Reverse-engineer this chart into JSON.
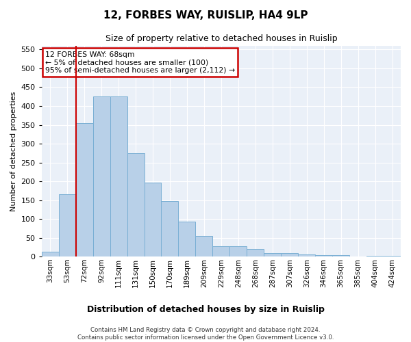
{
  "title": "12, FORBES WAY, RUISLIP, HA4 9LP",
  "subtitle": "Size of property relative to detached houses in Ruislip",
  "xlabel": "Distribution of detached houses by size in Ruislip",
  "ylabel": "Number of detached properties",
  "categories": [
    "33sqm",
    "53sqm",
    "72sqm",
    "92sqm",
    "111sqm",
    "131sqm",
    "150sqm",
    "170sqm",
    "189sqm",
    "209sqm",
    "229sqm",
    "248sqm",
    "268sqm",
    "287sqm",
    "307sqm",
    "326sqm",
    "346sqm",
    "365sqm",
    "385sqm",
    "404sqm",
    "424sqm"
  ],
  "values": [
    13,
    165,
    355,
    425,
    425,
    275,
    197,
    148,
    93,
    55,
    27,
    27,
    20,
    10,
    10,
    6,
    4,
    3,
    1,
    2,
    2
  ],
  "bar_color": "#b8d0e8",
  "bar_edge_color": "#7aafd4",
  "annotation_text_line1": "12 FORBES WAY: 68sqm",
  "annotation_text_line2": "← 5% of detached houses are smaller (100)",
  "annotation_text_line3": "95% of semi-detached houses are larger (2,112) →",
  "annotation_box_color": "#ffffff",
  "annotation_box_edge": "#cc0000",
  "red_line_x": 1.5,
  "ylim": [
    0,
    560
  ],
  "yticks": [
    0,
    50,
    100,
    150,
    200,
    250,
    300,
    350,
    400,
    450,
    500,
    550
  ],
  "footer_line1": "Contains HM Land Registry data © Crown copyright and database right 2024.",
  "footer_line2": "Contains public sector information licensed under the Open Government Licence v3.0.",
  "plot_background": "#eaf0f8"
}
